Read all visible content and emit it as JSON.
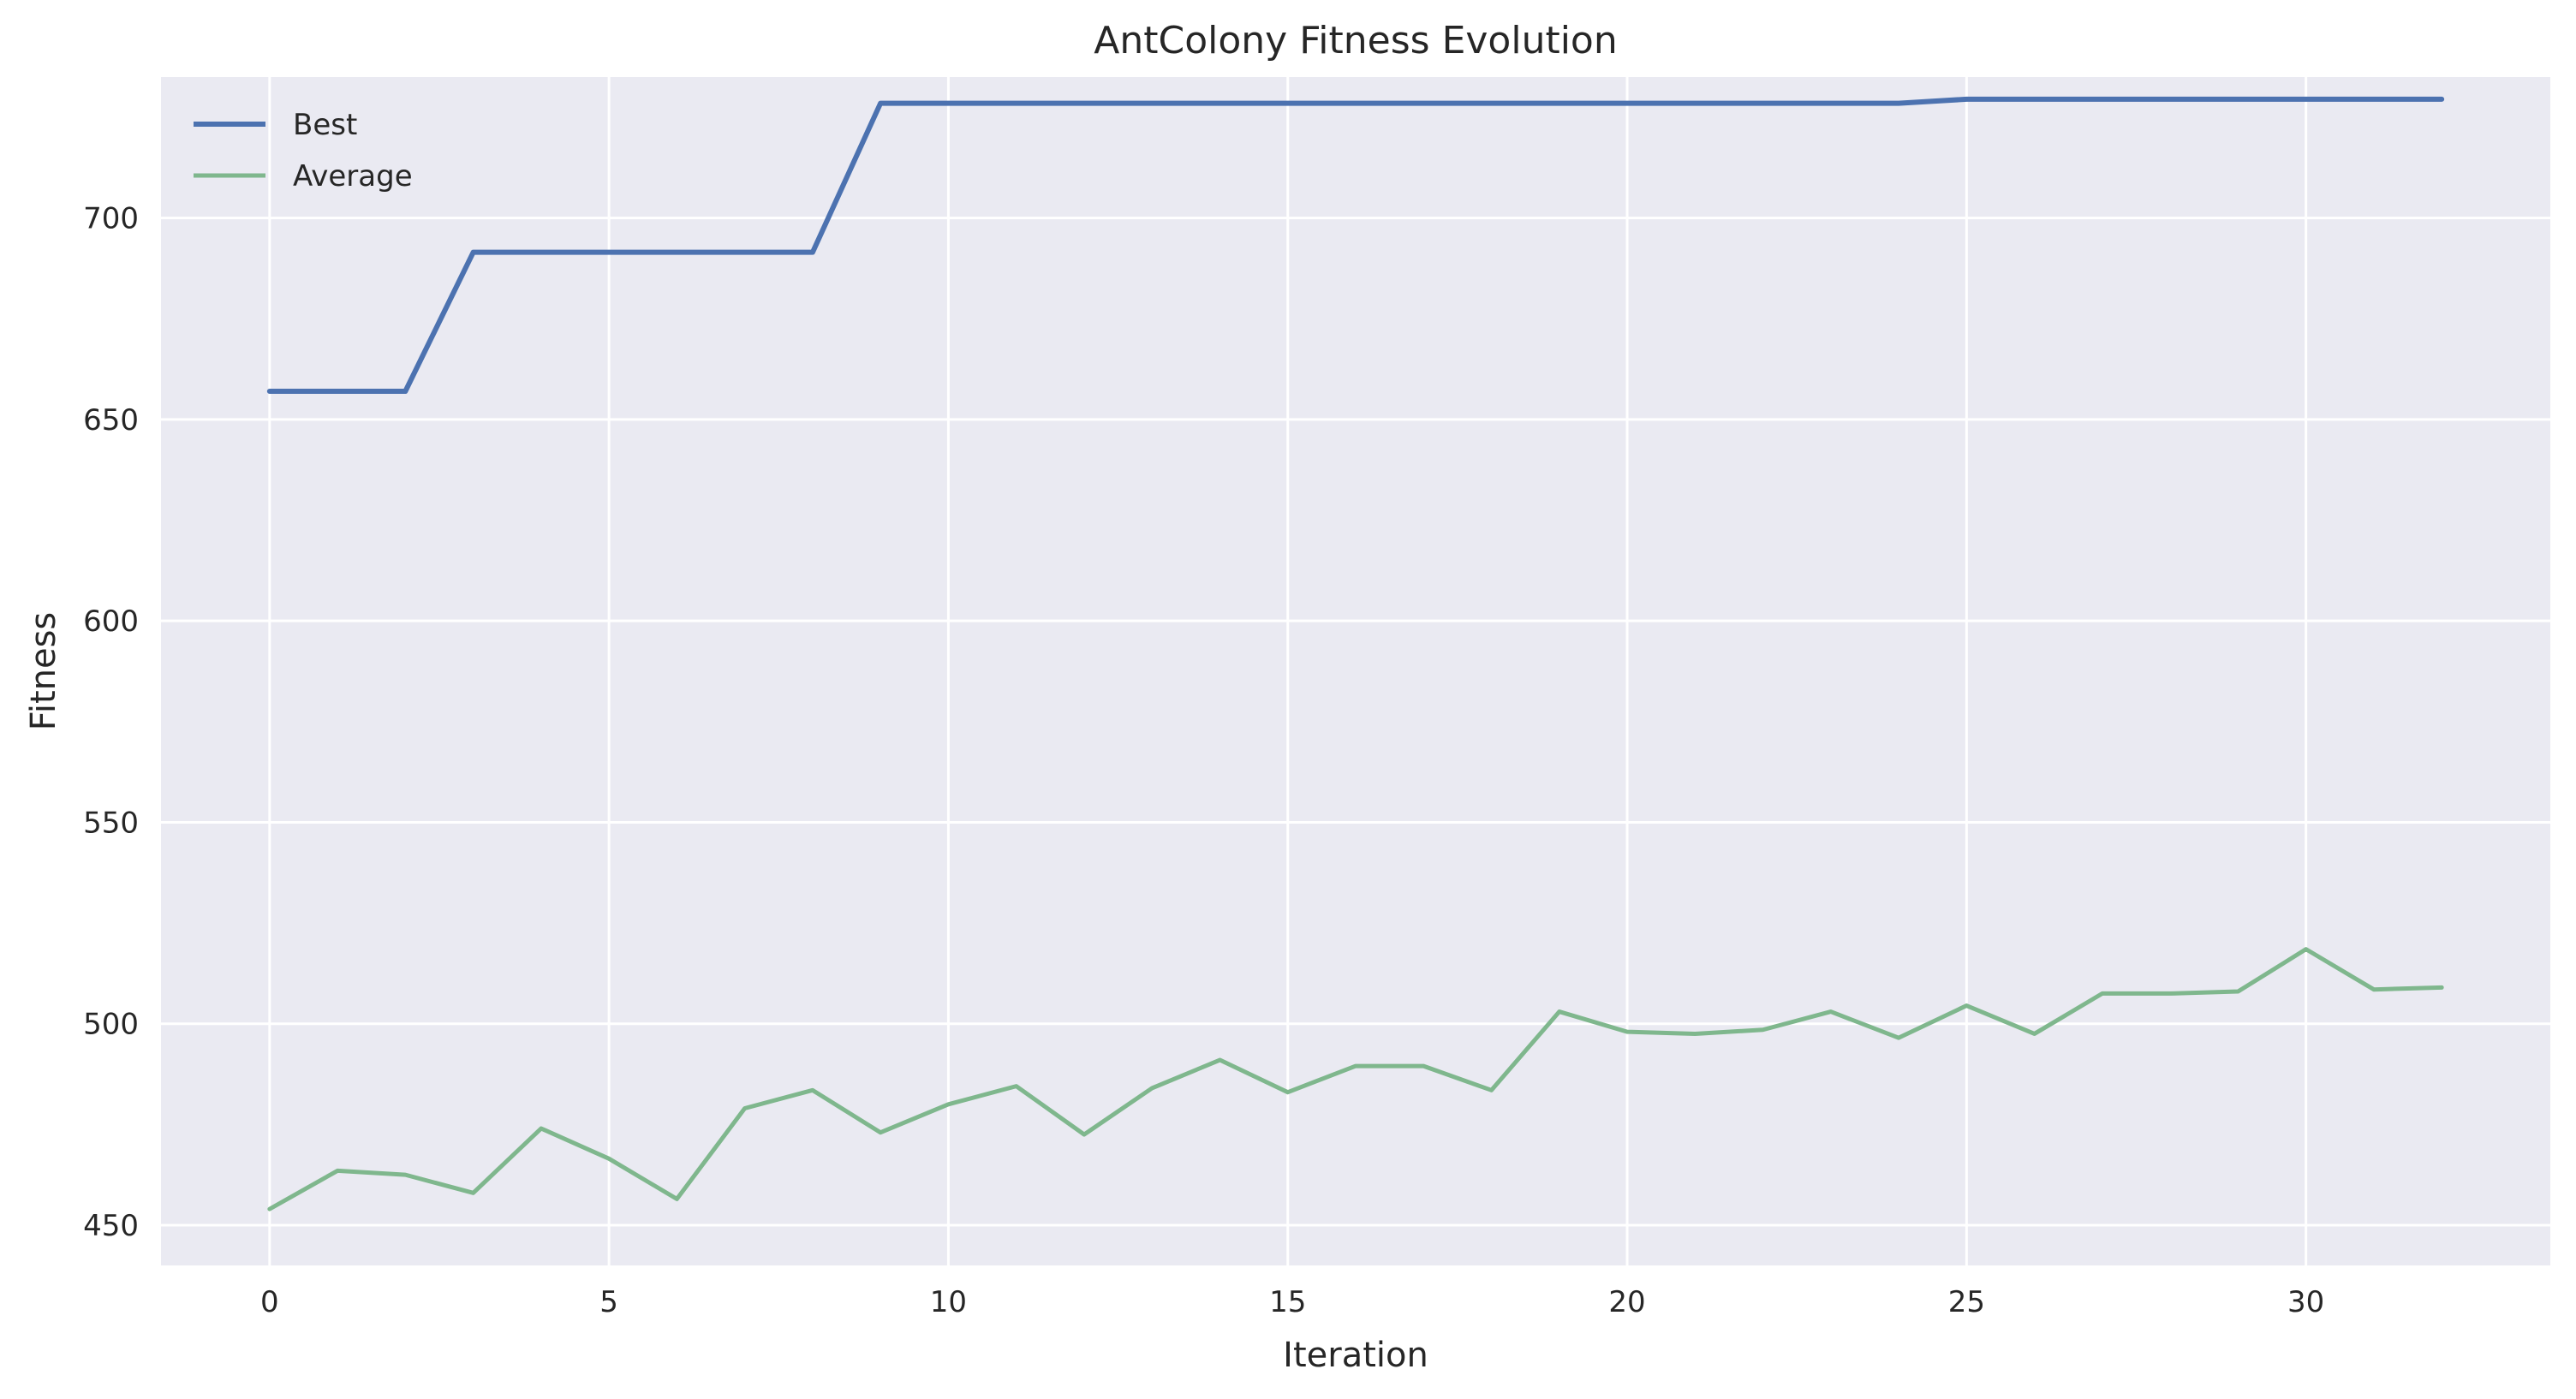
{
  "chart_data": {
    "type": "line",
    "title": "AntColony Fitness Evolution",
    "xlabel": "Iteration",
    "ylabel": "Fitness",
    "xlim": [
      -1.6,
      33.6
    ],
    "ylim": [
      440,
      735
    ],
    "xticks": [
      0,
      5,
      10,
      15,
      20,
      25,
      30
    ],
    "yticks": [
      450,
      500,
      550,
      600,
      650,
      700
    ],
    "grid": true,
    "legend_position": "top-left",
    "x": [
      0,
      1,
      2,
      3,
      4,
      5,
      6,
      7,
      8,
      9,
      10,
      11,
      12,
      13,
      14,
      15,
      16,
      17,
      18,
      19,
      20,
      21,
      22,
      23,
      24,
      25,
      26,
      27,
      28,
      29,
      30,
      31,
      32
    ],
    "series": [
      {
        "name": "Best",
        "color": "#4c72b0",
        "values": [
          657,
          657,
          657,
          691.5,
          691.5,
          691.5,
          691.5,
          691.5,
          691.5,
          728.5,
          728.5,
          728.5,
          728.5,
          728.5,
          728.5,
          728.5,
          728.5,
          728.5,
          728.5,
          728.5,
          728.5,
          728.5,
          728.5,
          728.5,
          728.5,
          729.5,
          729.5,
          729.5,
          729.5,
          729.5,
          729.5,
          729.5,
          729.5
        ]
      },
      {
        "name": "Average",
        "color": "#7fb78d",
        "values": [
          454,
          463.5,
          462.5,
          458,
          474,
          466.5,
          456.5,
          479,
          483.5,
          473,
          480,
          484.5,
          472.5,
          484,
          491,
          483,
          489.5,
          489.5,
          483.5,
          503,
          498,
          497.5,
          498.5,
          503,
          496.5,
          504.5,
          497.5,
          507.5,
          507.5,
          508,
          518.5,
          508.5,
          509
        ]
      }
    ]
  }
}
